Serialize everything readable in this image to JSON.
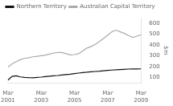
{
  "chart_data": {
    "type": "line",
    "ylabel": "$m",
    "categories": [
      "Mar\n2001",
      null,
      null,
      null,
      null,
      null,
      null,
      null,
      "Mar\n2003",
      null,
      null,
      null,
      null,
      null,
      null,
      null,
      "Mar\n2005",
      null,
      null,
      null,
      null,
      null,
      null,
      null,
      "Mar\n2007",
      null,
      null,
      null,
      null,
      null,
      null,
      null,
      "Mar\n2009"
    ],
    "series": [
      {
        "name": "Northern Territory",
        "color": "#111111",
        "values": [
          75,
          110,
          115,
          105,
          100,
          98,
          97,
          100,
          103,
          108,
          112,
          115,
          118,
          122,
          126,
          130,
          135,
          140,
          145,
          148,
          152,
          155,
          158,
          162,
          165,
          168,
          170,
          173,
          175,
          177,
          178,
          178,
          179
        ]
      },
      {
        "name": "Australian Capital Territory",
        "color": "#aaaaaa",
        "values": [
          195,
          225,
          245,
          265,
          275,
          282,
          290,
          295,
          300,
          305,
          315,
          325,
          330,
          330,
          318,
          308,
          310,
          318,
          345,
          370,
          385,
          405,
          430,
          460,
          490,
          520,
          535,
          520,
          505,
          485,
          468,
          480,
          492
        ]
      }
    ],
    "ylim": [
      50,
      650
    ],
    "yticks": [
      100,
      200,
      300,
      400,
      500,
      600
    ],
    "grid": false,
    "legend": "upper left"
  }
}
